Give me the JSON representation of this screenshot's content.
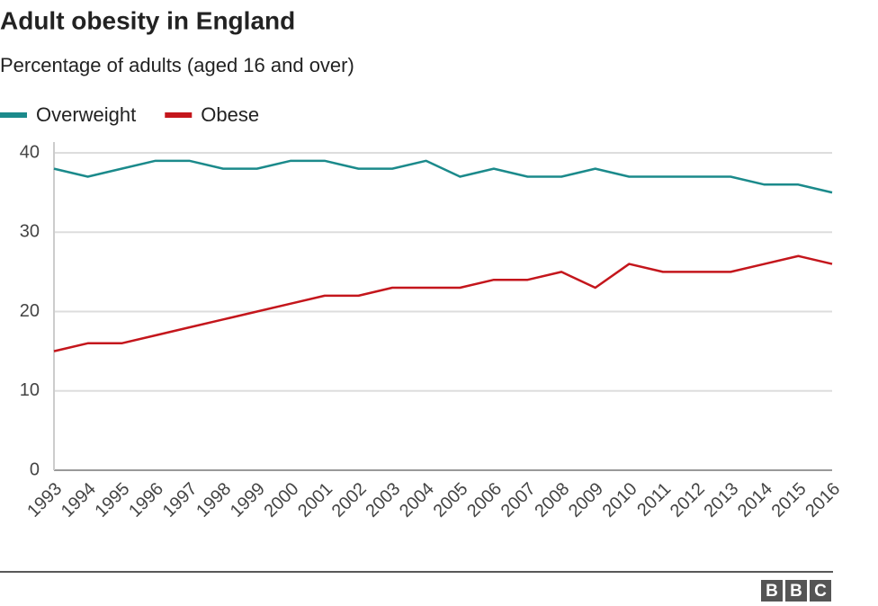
{
  "chart_data": {
    "type": "line",
    "title": "Adult obesity in England",
    "subtitle": "Percentage of adults (aged 16 and over)",
    "categories": [
      "1993",
      "1994",
      "1995",
      "1996",
      "1997",
      "1998",
      "1999",
      "2000",
      "2001",
      "2002",
      "2003",
      "2004",
      "2005",
      "2006",
      "2007",
      "2008",
      "2009",
      "2010",
      "2011",
      "2012",
      "2013",
      "2014",
      "2015",
      "2016"
    ],
    "series": [
      {
        "name": "Overweight",
        "color": "#1b8a8b",
        "values": [
          38,
          37,
          38,
          39,
          39,
          38,
          38,
          39,
          39,
          38,
          38,
          39,
          37,
          38,
          37,
          37,
          38,
          37,
          37,
          37,
          37,
          36,
          36,
          35
        ]
      },
      {
        "name": "Obese",
        "color": "#c4161c",
        "values": [
          15,
          16,
          16,
          17,
          18,
          19,
          20,
          21,
          22,
          22,
          23,
          23,
          23,
          24,
          24,
          25,
          23,
          26,
          25,
          25,
          25,
          26,
          27,
          26
        ]
      }
    ],
    "ylim": [
      0,
      40
    ],
    "yticks": [
      0,
      10,
      20,
      30,
      40
    ],
    "grid": true,
    "legend": "top-left",
    "logo": [
      "B",
      "B",
      "C"
    ]
  }
}
